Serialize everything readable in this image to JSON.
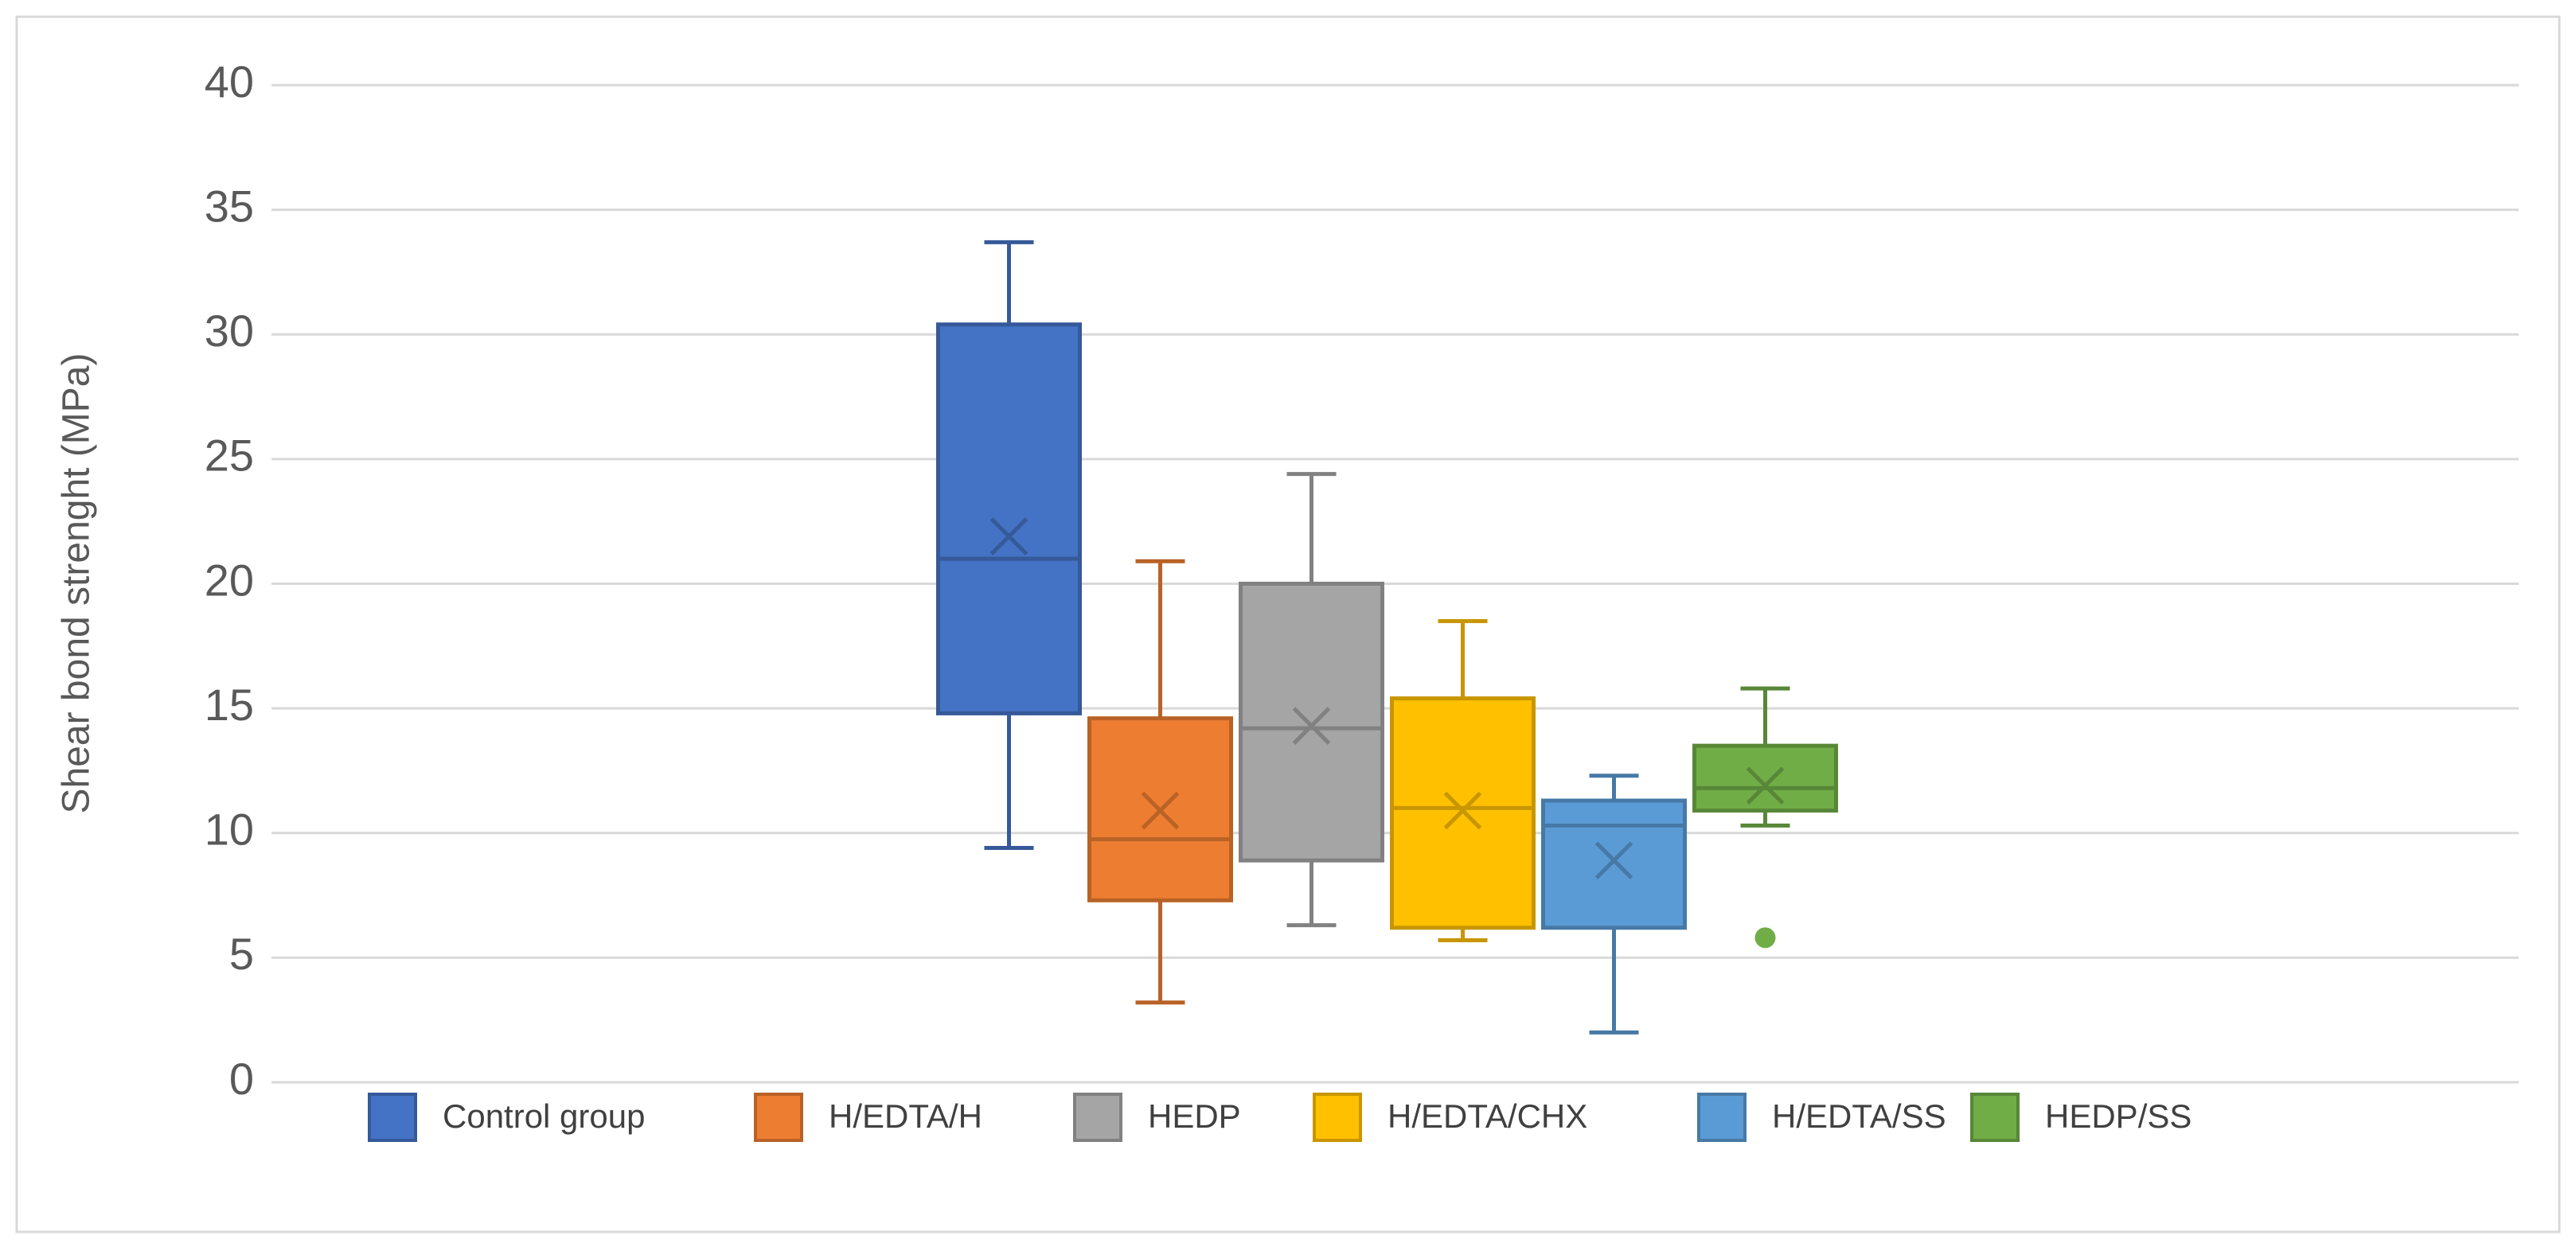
{
  "chart_data": {
    "type": "box",
    "ylabel": "Shear bond strenght (MPa)",
    "ylim": [
      0,
      40
    ],
    "yticks": [
      0,
      5,
      10,
      15,
      20,
      25,
      30,
      35,
      40
    ],
    "grid": true,
    "legend": "bottom",
    "series": [
      {
        "name": "Control group",
        "color": "#4472c4",
        "min": 9.4,
        "q1": 14.8,
        "median": 21.0,
        "q3": 30.4,
        "max": 33.7,
        "mean": 21.9,
        "outliers": []
      },
      {
        "name": "H/EDTA/H",
        "color": "#ed7d31",
        "min": 3.2,
        "q1": 7.3,
        "median": 9.75,
        "q3": 14.6,
        "max": 20.9,
        "mean": 10.9,
        "outliers": []
      },
      {
        "name": "HEDP",
        "color": "#a5a5a5",
        "min": 6.3,
        "q1": 8.9,
        "median": 14.2,
        "q3": 20.0,
        "max": 24.4,
        "mean": 14.3,
        "outliers": []
      },
      {
        "name": "H/EDTA/CHX",
        "color": "#ffc000",
        "min": 5.7,
        "q1": 6.2,
        "median": 11.0,
        "q3": 15.4,
        "max": 18.5,
        "mean": 10.9,
        "outliers": []
      },
      {
        "name": "H/EDTA/SS",
        "color": "#5b9bd5",
        "min": 2.0,
        "q1": 6.2,
        "median": 10.3,
        "q3": 11.3,
        "max": 12.3,
        "mean": 8.9,
        "outliers": []
      },
      {
        "name": "HEDP/SS",
        "color": "#70ad47",
        "min": 10.3,
        "q1": 10.9,
        "median": 11.8,
        "q3": 13.5,
        "max": 15.8,
        "mean": 11.9,
        "outliers": [
          5.8
        ]
      }
    ]
  }
}
